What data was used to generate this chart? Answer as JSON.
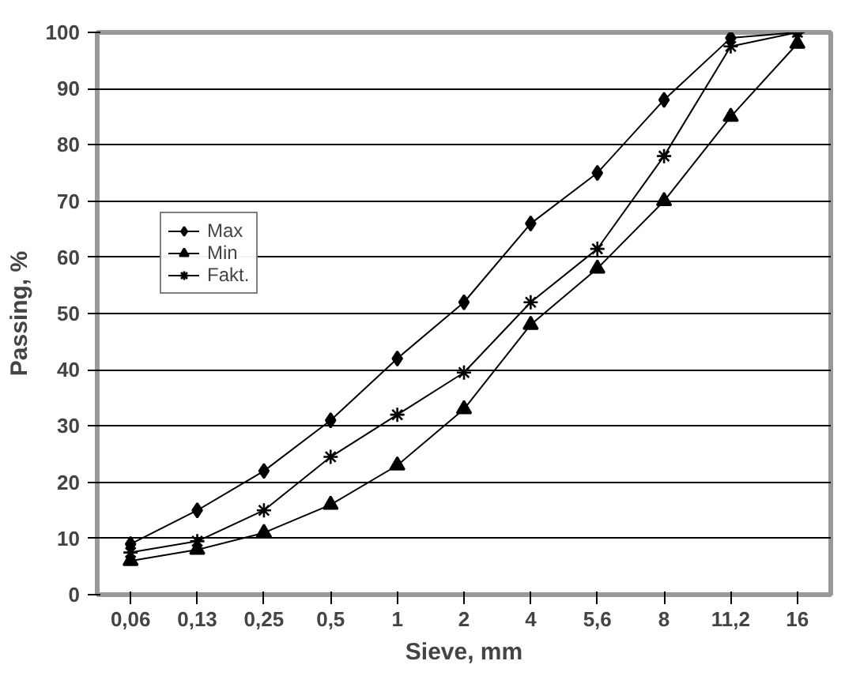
{
  "chart_data": {
    "type": "line",
    "xlabel": "Sieve, mm",
    "ylabel": "Passing, %",
    "categories": [
      "0,06",
      "0,13",
      "0,25",
      "0,5",
      "1",
      "2",
      "4",
      "5,6",
      "8",
      "11,2",
      "16"
    ],
    "series": [
      {
        "name": "Max",
        "color": "#000000",
        "marker": "diamond",
        "values": [
          9,
          15,
          22,
          31,
          42,
          52,
          66,
          75,
          88,
          99,
          100
        ]
      },
      {
        "name": "Min",
        "color": "#000000",
        "marker": "triangle",
        "values": [
          6,
          8,
          11,
          16,
          23,
          33,
          48,
          58,
          70,
          85,
          98
        ]
      },
      {
        "name": "Fakt.",
        "color": "#000000",
        "marker": "cross",
        "values": [
          7.5,
          9.5,
          15,
          24.5,
          32,
          39.5,
          52,
          61.5,
          78,
          97.5,
          100
        ]
      }
    ],
    "ylim": [
      0,
      100
    ],
    "yticks": [
      0,
      10,
      20,
      30,
      40,
      50,
      60,
      70,
      80,
      90,
      100
    ],
    "grid": "y",
    "legend": "top left",
    "line_style": "solid"
  }
}
